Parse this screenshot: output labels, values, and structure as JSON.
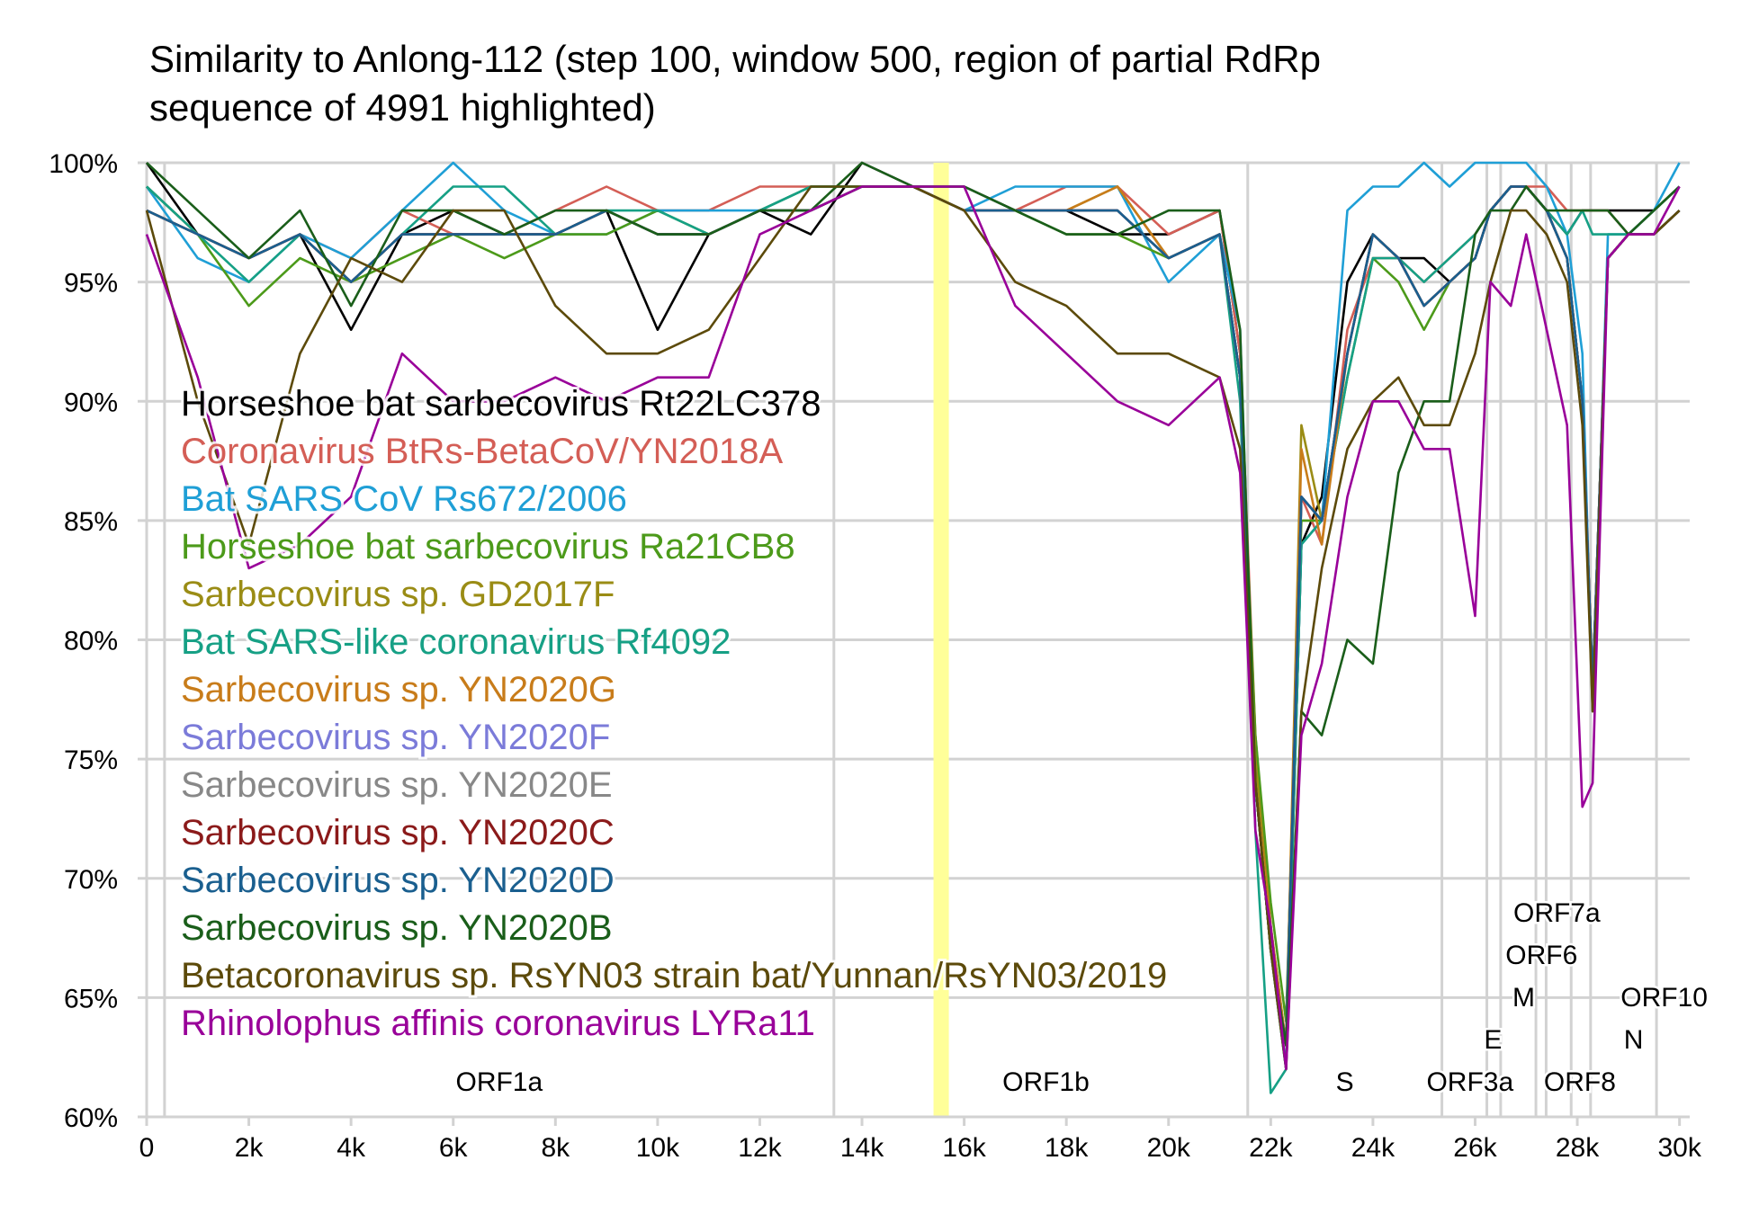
{
  "chart_data": {
    "type": "line",
    "title_lines": [
      "Similarity to Anlong-112 (step 100, window 500, region of partial RdRp",
      "sequence of 4991 highlighted)"
    ],
    "xlabel": "",
    "ylabel": "",
    "xlim": [
      0,
      30200
    ],
    "ylim": [
      60,
      100
    ],
    "x_ticks": [
      {
        "value": 0,
        "label": "0"
      },
      {
        "value": 2000,
        "label": "2k"
      },
      {
        "value": 4000,
        "label": "4k"
      },
      {
        "value": 6000,
        "label": "6k"
      },
      {
        "value": 8000,
        "label": "8k"
      },
      {
        "value": 10000,
        "label": "10k"
      },
      {
        "value": 12000,
        "label": "12k"
      },
      {
        "value": 14000,
        "label": "14k"
      },
      {
        "value": 16000,
        "label": "16k"
      },
      {
        "value": 18000,
        "label": "18k"
      },
      {
        "value": 20000,
        "label": "20k"
      },
      {
        "value": 22000,
        "label": "22k"
      },
      {
        "value": 24000,
        "label": "24k"
      },
      {
        "value": 26000,
        "label": "26k"
      },
      {
        "value": 28000,
        "label": "28k"
      },
      {
        "value": 30000,
        "label": "30k"
      }
    ],
    "y_ticks": [
      {
        "value": 60,
        "label": "60%"
      },
      {
        "value": 65,
        "label": "65%"
      },
      {
        "value": 70,
        "label": "70%"
      },
      {
        "value": 75,
        "label": "75%"
      },
      {
        "value": 80,
        "label": "80%"
      },
      {
        "value": 85,
        "label": "85%"
      },
      {
        "value": 90,
        "label": "90%"
      },
      {
        "value": 95,
        "label": "95%"
      },
      {
        "value": 100,
        "label": "100%"
      }
    ],
    "grid": true,
    "legend_position": "inside-left",
    "highlight_region": {
      "x0": 15400,
      "x1": 15700,
      "color": "#ffff99"
    },
    "gene_boundaries": [
      350,
      13450,
      21550,
      25350,
      26230,
      26500,
      27190,
      27390,
      27880,
      28260,
      29550
    ],
    "gene_labels": [
      {
        "name": "ORF1a",
        "x": 6900,
        "level": 0
      },
      {
        "name": "ORF1b",
        "x": 17600,
        "level": 0
      },
      {
        "name": "S",
        "x": 23450,
        "level": 0
      },
      {
        "name": "ORF3a",
        "x": 25900,
        "level": 0
      },
      {
        "name": "E",
        "x": 26350,
        "level": 1
      },
      {
        "name": "M",
        "x": 26950,
        "level": 2
      },
      {
        "name": "ORF6",
        "x": 27300,
        "level": 3
      },
      {
        "name": "ORF7a",
        "x": 27600,
        "level": 4
      },
      {
        "name": "ORF8",
        "x": 28050,
        "level": 0
      },
      {
        "name": "N",
        "x": 29100,
        "level": 1
      },
      {
        "name": "ORF10",
        "x": 29700,
        "level": 2
      }
    ],
    "x": [
      0,
      1000,
      2000,
      3000,
      4000,
      5000,
      6000,
      7000,
      8000,
      9000,
      10000,
      11000,
      12000,
      13000,
      14000,
      15000,
      16000,
      17000,
      18000,
      19000,
      20000,
      21000,
      21400,
      21700,
      22000,
      22300,
      22600,
      23000,
      23500,
      24000,
      24500,
      25000,
      25500,
      26000,
      26300,
      26700,
      27000,
      27400,
      27800,
      28100,
      28300,
      28600,
      29000,
      29500,
      30000
    ],
    "series": [
      {
        "name": "Horseshoe bat sarbecovirus Rt22LC378",
        "color": "#000000",
        "values": [
          100,
          97,
          96,
          97,
          93,
          97,
          98,
          97,
          97,
          98,
          93,
          97,
          98,
          97,
          100,
          99,
          99,
          98,
          98,
          97,
          97,
          98,
          92,
          75,
          67,
          62,
          84,
          86,
          95,
          97,
          96,
          96,
          95,
          96,
          98,
          99,
          99,
          98,
          97,
          98,
          98,
          98,
          98,
          98,
          99
        ]
      },
      {
        "name": "Coronavirus BtRs-BetaCoV/YN2018A",
        "color": "#d45e56",
        "values": [
          99,
          97,
          96,
          97,
          96,
          98,
          97,
          97,
          98,
          99,
          98,
          98,
          99,
          99,
          99,
          99,
          98,
          98,
          99,
          99,
          97,
          98,
          92,
          76,
          68,
          63,
          86,
          84,
          93,
          96,
          96,
          95,
          96,
          97,
          98,
          99,
          99,
          99,
          98,
          98,
          98,
          98,
          97,
          98,
          99
        ]
      },
      {
        "name": "Bat SARS CoV Rs672/2006",
        "color": "#1f9fd6",
        "values": [
          99,
          96,
          95,
          97,
          96,
          98,
          100,
          98,
          97,
          97,
          98,
          98,
          98,
          99,
          99,
          99,
          98,
          99,
          99,
          99,
          95,
          97,
          93,
          74,
          67,
          62,
          84,
          85,
          98,
          99,
          99,
          100,
          99,
          100,
          100,
          100,
          100,
          99,
          97,
          92,
          77,
          97,
          97,
          98,
          100
        ]
      },
      {
        "name": "Horseshoe bat sarbecovirus Ra21CB8",
        "color": "#4c9a1a",
        "values": [
          99,
          97,
          94,
          96,
          95,
          96,
          97,
          96,
          97,
          97,
          98,
          97,
          98,
          99,
          99,
          99,
          98,
          98,
          97,
          97,
          96,
          97,
          91,
          76,
          69,
          64,
          85,
          85,
          91,
          96,
          95,
          93,
          95,
          96,
          98,
          99,
          99,
          98,
          96,
          90,
          78,
          96,
          97,
          97,
          98
        ]
      },
      {
        "name": "Sarbecovirus sp. GD2017F",
        "color": "#9a8c15",
        "values": [
          98,
          97,
          96,
          97,
          95,
          97,
          97,
          97,
          97,
          98,
          97,
          97,
          98,
          98,
          99,
          99,
          98,
          98,
          98,
          99,
          96,
          97,
          91,
          75,
          68,
          63,
          89,
          85,
          92,
          97,
          96,
          94,
          95,
          96,
          98,
          99,
          99,
          98,
          96,
          90,
          77,
          96,
          97,
          97,
          98
        ]
      },
      {
        "name": "Bat SARS-like coronavirus Rf4092",
        "color": "#16a085",
        "values": [
          99,
          97,
          95,
          97,
          95,
          97,
          99,
          99,
          97,
          98,
          98,
          97,
          98,
          99,
          99,
          99,
          98,
          98,
          98,
          98,
          96,
          97,
          90,
          72,
          61,
          62,
          84,
          85,
          91,
          96,
          96,
          95,
          96,
          97,
          98,
          99,
          99,
          98,
          97,
          98,
          97,
          97,
          97,
          98,
          99
        ]
      },
      {
        "name": "Sarbecovirus sp. YN2020G",
        "color": "#c87c1a",
        "values": [
          98,
          97,
          96,
          97,
          95,
          97,
          97,
          97,
          97,
          98,
          97,
          97,
          98,
          98,
          99,
          99,
          98,
          98,
          98,
          99,
          96,
          97,
          91,
          74,
          68,
          63,
          88,
          84,
          92,
          97,
          96,
          94,
          95,
          96,
          98,
          99,
          99,
          98,
          96,
          90,
          78,
          96,
          97,
          97,
          98
        ]
      },
      {
        "name": "Sarbecovirus sp. YN2020F",
        "color": "#7b7bd9",
        "values": [
          98,
          97,
          96,
          97,
          95,
          97,
          97,
          97,
          97,
          98,
          97,
          97,
          98,
          98,
          99,
          99,
          98,
          98,
          98,
          98,
          96,
          97,
          91,
          74,
          67,
          63,
          86,
          85,
          92,
          97,
          96,
          94,
          95,
          96,
          98,
          99,
          99,
          98,
          96,
          90,
          78,
          96,
          97,
          97,
          98
        ]
      },
      {
        "name": "Sarbecovirus sp. YN2020E",
        "color": "#888888",
        "values": [
          98,
          97,
          96,
          97,
          95,
          97,
          97,
          97,
          97,
          98,
          97,
          97,
          98,
          98,
          99,
          99,
          98,
          98,
          98,
          98,
          96,
          97,
          91,
          74,
          67,
          63,
          86,
          85,
          92,
          97,
          96,
          94,
          95,
          96,
          98,
          99,
          99,
          98,
          96,
          90,
          78,
          96,
          97,
          97,
          98
        ]
      },
      {
        "name": "Sarbecovirus sp. YN2020C",
        "color": "#8b1a1a",
        "values": [
          98,
          97,
          96,
          97,
          95,
          97,
          97,
          97,
          97,
          98,
          97,
          97,
          98,
          98,
          99,
          99,
          98,
          98,
          98,
          98,
          96,
          97,
          91,
          74,
          67,
          63,
          86,
          85,
          92,
          97,
          96,
          94,
          95,
          96,
          98,
          99,
          99,
          98,
          96,
          90,
          78,
          96,
          97,
          97,
          98
        ]
      },
      {
        "name": "Sarbecovirus sp. YN2020D",
        "color": "#1a5f8f",
        "values": [
          98,
          97,
          96,
          97,
          95,
          97,
          97,
          97,
          97,
          98,
          97,
          97,
          98,
          98,
          99,
          99,
          98,
          98,
          98,
          98,
          96,
          97,
          91,
          74,
          67,
          63,
          86,
          85,
          92,
          97,
          96,
          94,
          95,
          96,
          98,
          99,
          99,
          98,
          96,
          90,
          78,
          96,
          97,
          97,
          98
        ]
      },
      {
        "name": "Sarbecovirus sp. YN2020B",
        "color": "#1a5e1a",
        "values": [
          100,
          98,
          96,
          98,
          94,
          98,
          98,
          97,
          98,
          98,
          97,
          97,
          98,
          98,
          100,
          99,
          99,
          98,
          97,
          97,
          98,
          98,
          93,
          74,
          67,
          63,
          77,
          76,
          80,
          79,
          87,
          90,
          90,
          97,
          98,
          98,
          99,
          98,
          98,
          98,
          98,
          98,
          97,
          98,
          99
        ]
      },
      {
        "name": "Betacoronavirus sp. RsYN03 strain bat/Yunnan/RsYN03/2019",
        "color": "#5c4a0a",
        "values": [
          98,
          90,
          84,
          92,
          96,
          95,
          98,
          98,
          94,
          92,
          92,
          93,
          96,
          99,
          99,
          99,
          98,
          95,
          94,
          92,
          92,
          91,
          88,
          74,
          67,
          62,
          77,
          83,
          88,
          90,
          91,
          89,
          89,
          92,
          95,
          98,
          98,
          97,
          95,
          89,
          77,
          96,
          97,
          97,
          98
        ]
      },
      {
        "name": "Rhinolophus affinis coronavirus LYRa11",
        "color": "#990099",
        "values": [
          97,
          91,
          83,
          84,
          86,
          92,
          90,
          90,
          91,
          90,
          91,
          91,
          97,
          98,
          99,
          99,
          99,
          94,
          92,
          90,
          89,
          91,
          87,
          72,
          68,
          62,
          76,
          79,
          86,
          90,
          90,
          88,
          88,
          81,
          95,
          94,
          97,
          93,
          89,
          73,
          74,
          96,
          97,
          97,
          99
        ]
      }
    ]
  }
}
